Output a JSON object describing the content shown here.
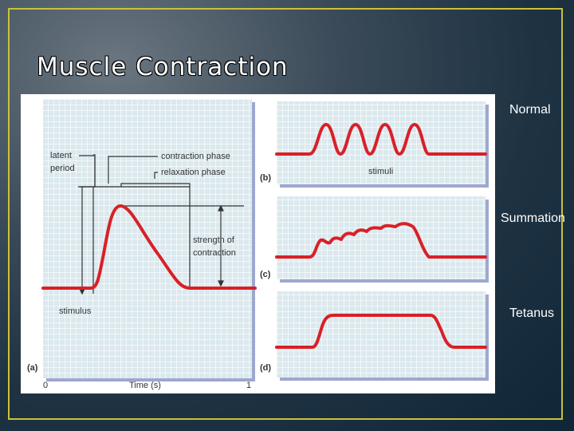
{
  "slide": {
    "title": "Muscle Contraction",
    "side_labels": {
      "normal": "Normal",
      "summation": "Summation",
      "tetanus": "Tetanus"
    }
  },
  "figure": {
    "panel_a": {
      "tag": "(a)",
      "latent_line1": "latent",
      "latent_line2": "period",
      "contraction_phase": "contraction phase",
      "relaxation_phase": "relaxation phase",
      "strength_line1": "strength of",
      "strength_line2": "contraction",
      "stimulus": "stimulus",
      "x_start": "0",
      "x_end": "1",
      "x_label": "Time (s)"
    },
    "panel_b": {
      "tag": "(b)",
      "stimuli": "stimuli"
    },
    "panel_c": {
      "tag": "(c)"
    },
    "panel_d": {
      "tag": "(d)"
    },
    "colors": {
      "grid_bg": "#dbe9ee",
      "grid_line": "#ffffff",
      "curve": "#d92027",
      "panel_shadow": "#9ea8cf"
    }
  }
}
